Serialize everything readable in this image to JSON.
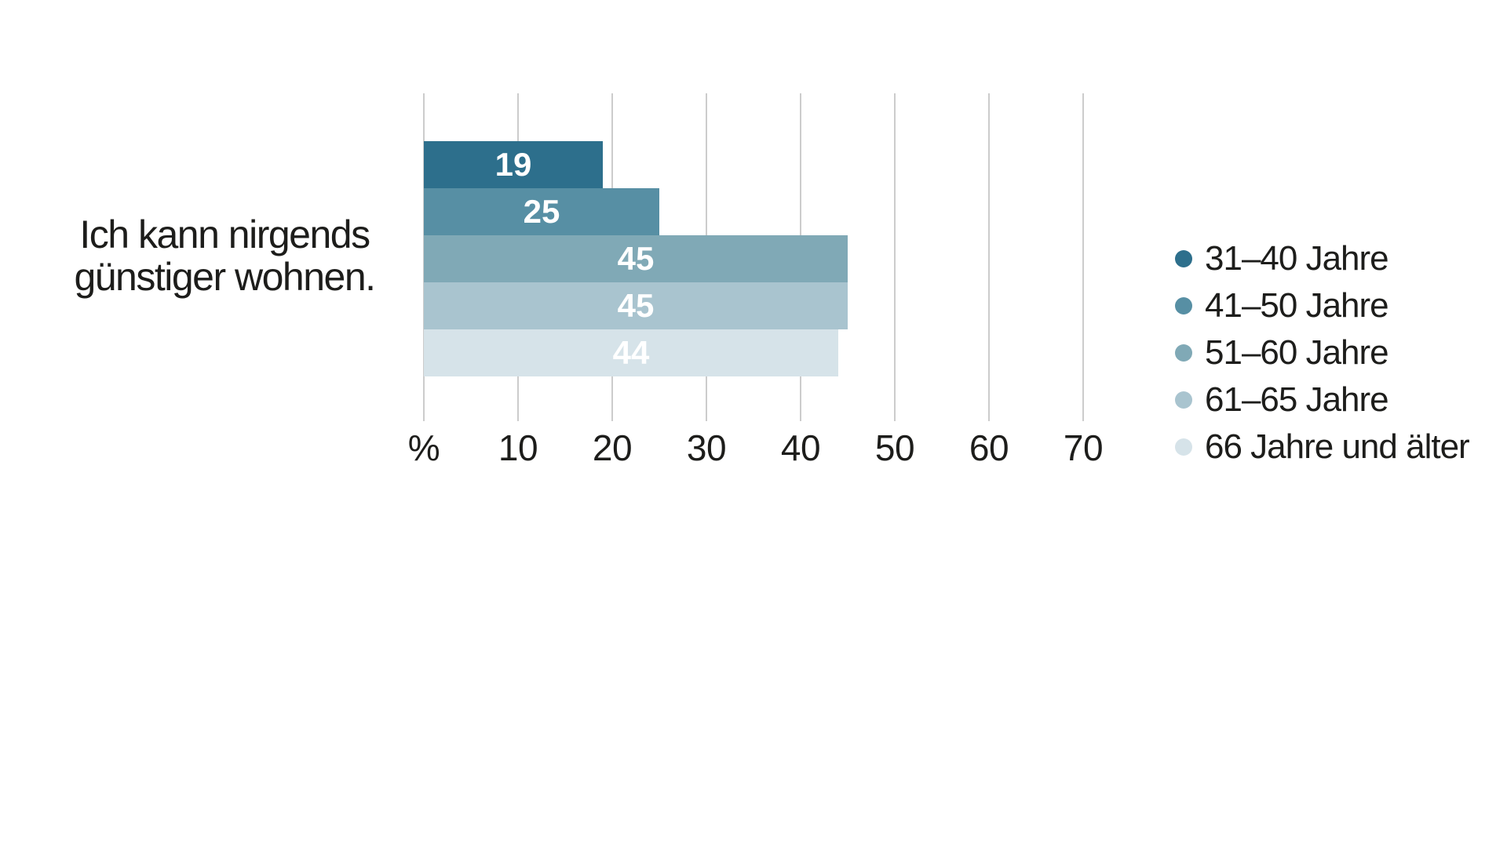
{
  "category_label": {
    "line1": "Ich kann nirgends",
    "line2": "günstiger wohnen.",
    "full": "Ich kann nirgends günstiger wohnen."
  },
  "chart_data": {
    "type": "bar",
    "orientation": "horizontal",
    "unit": "%",
    "category": "Ich kann nirgends günstiger wohnen.",
    "series": [
      {
        "name": "31–40 Jahre",
        "value": 19,
        "color": "#2d6f8c"
      },
      {
        "name": "41–50 Jahre",
        "value": 25,
        "color": "#578fa4"
      },
      {
        "name": "51–60 Jahre",
        "value": 45,
        "color": "#80a9b6"
      },
      {
        "name": "61–65 Jahre",
        "value": 45,
        "color": "#a9c4cf"
      },
      {
        "name": "66 Jahre und älter",
        "value": 44,
        "color": "#d6e3e9"
      }
    ],
    "x_axis": {
      "tick_labels": [
        "%",
        "10",
        "20",
        "30",
        "40",
        "50",
        "60",
        "70"
      ],
      "tick_values": [
        0,
        10,
        20,
        30,
        40,
        50,
        60,
        70
      ],
      "min": 0,
      "max": 70,
      "gridlines": true
    },
    "legend": {
      "position": "right",
      "entries": [
        "31–40 Jahre",
        "41–50 Jahre",
        "51–60 Jahre",
        "61–65 Jahre",
        "66 Jahre und älter"
      ]
    },
    "value_label_style": "white-bold-centered"
  },
  "colors": {
    "background": "#ffffff",
    "gridline": "#cccccc",
    "text": "#1d1d1b",
    "value_label": "#ffffff"
  }
}
